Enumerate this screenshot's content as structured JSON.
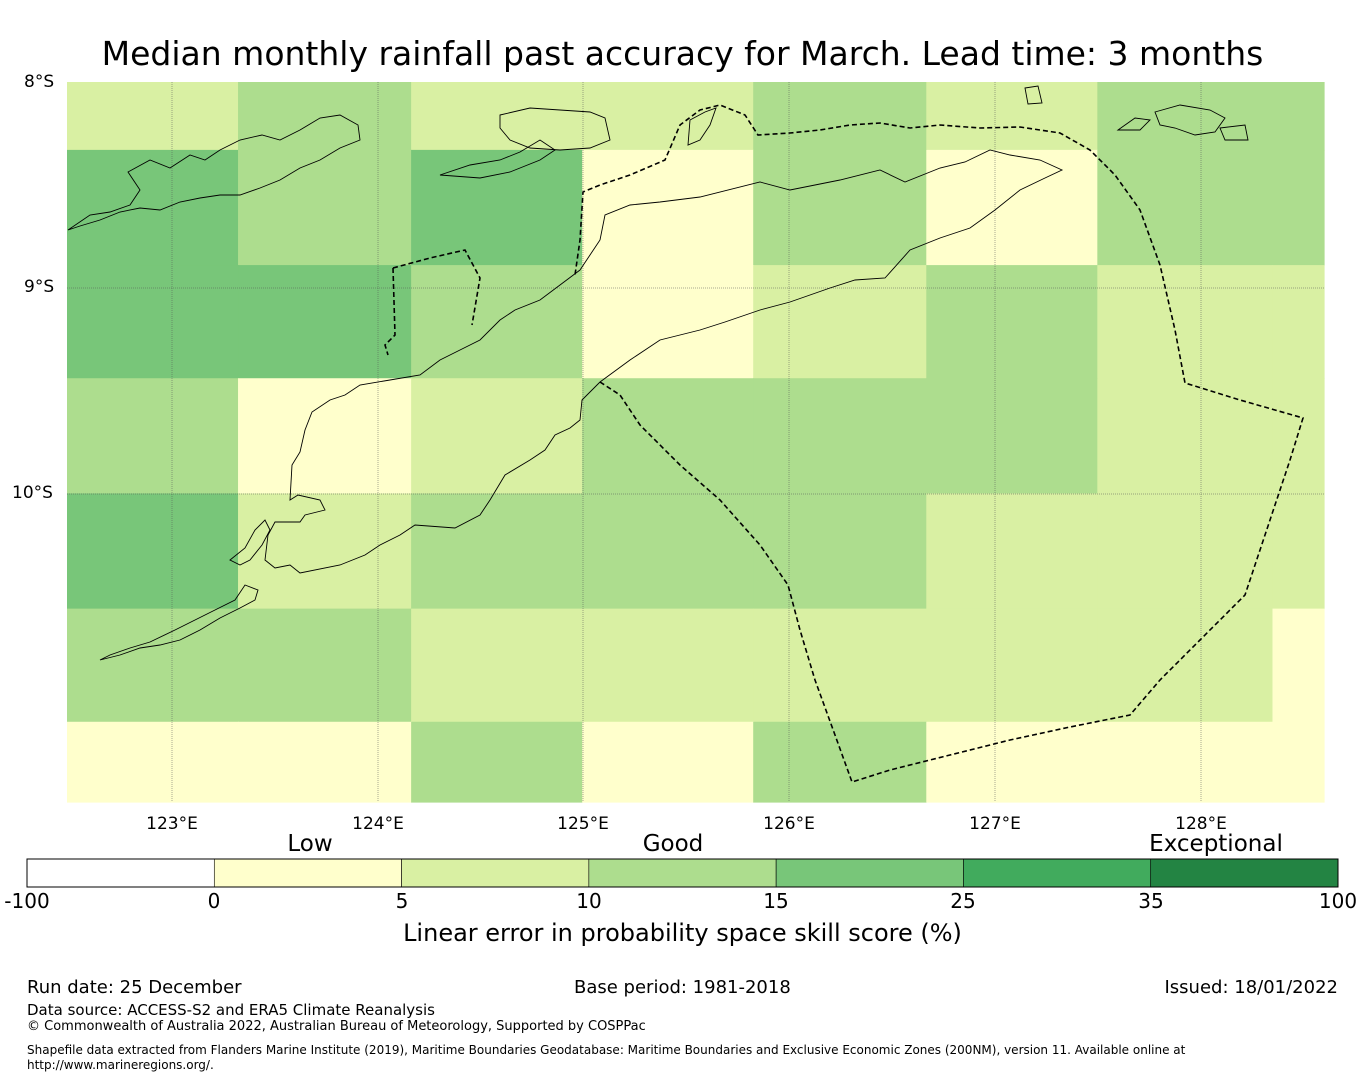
{
  "title": "Median monthly rainfall past accuracy for March. Lead time: 3 months",
  "map": {
    "lat_labels": [
      "8°S",
      "9°S",
      "10°S"
    ],
    "lon_labels": [
      "123°E",
      "124°E",
      "125°E",
      "126°E",
      "127°E",
      "128°E"
    ],
    "lon_range": [
      122.5,
      128.6
    ],
    "lat_range": [
      -11.5,
      -8.0
    ],
    "grid_lon_edges": [
      122.5,
      123.33,
      124.17,
      125.0,
      125.83,
      126.67,
      127.5,
      128.35,
      128.6
    ],
    "grid_lat_edges": [
      -8.0,
      -8.33,
      -8.89,
      -9.44,
      -10.0,
      -10.56,
      -11.11,
      -11.5
    ],
    "cell_classes": [
      [
        2,
        3,
        2,
        2,
        3,
        2,
        3,
        3
      ],
      [
        4,
        3,
        4,
        1,
        3,
        1,
        3,
        3
      ],
      [
        4,
        4,
        3,
        1,
        2,
        3,
        2,
        2
      ],
      [
        3,
        1,
        2,
        3,
        3,
        3,
        2,
        2
      ],
      [
        4,
        2,
        3,
        3,
        3,
        2,
        2,
        2
      ],
      [
        3,
        3,
        2,
        2,
        2,
        2,
        2,
        1
      ],
      [
        1,
        1,
        3,
        1,
        3,
        1,
        1,
        1
      ]
    ]
  },
  "colorbar": {
    "title": "Linear error in probability space skill score (%)",
    "categories": [
      "Low",
      "Good",
      "Exceptional"
    ],
    "tick_labels": [
      "-100",
      "0",
      "5",
      "10",
      "15",
      "25",
      "35",
      "100"
    ],
    "colors": [
      "#ffffff",
      "#ffffcc",
      "#d9f0a3",
      "#addd8e",
      "#78c679",
      "#41ab5d",
      "#238443"
    ]
  },
  "footer": {
    "run_date": "Run date: 25 December",
    "base_period": "Base period: 1981-2018",
    "issued": "Issued: 18/01/2022",
    "data_source": "Data source: ACCESS-S2 and ERA5 Climate Reanalysis",
    "copyright": "© Commonwealth of Australia 2022, Australian Bureau of Meteorology, Supported by COSPPac",
    "shapefile_line1": "Shapefile data extracted from Flanders Marine Institute (2019), Maritime Boundaries Geodatabase: Maritime Boundaries and Exclusive Economic Zones (200NM), version 11. Available online at",
    "shapefile_line2": "http://www.marineregions.org/."
  }
}
